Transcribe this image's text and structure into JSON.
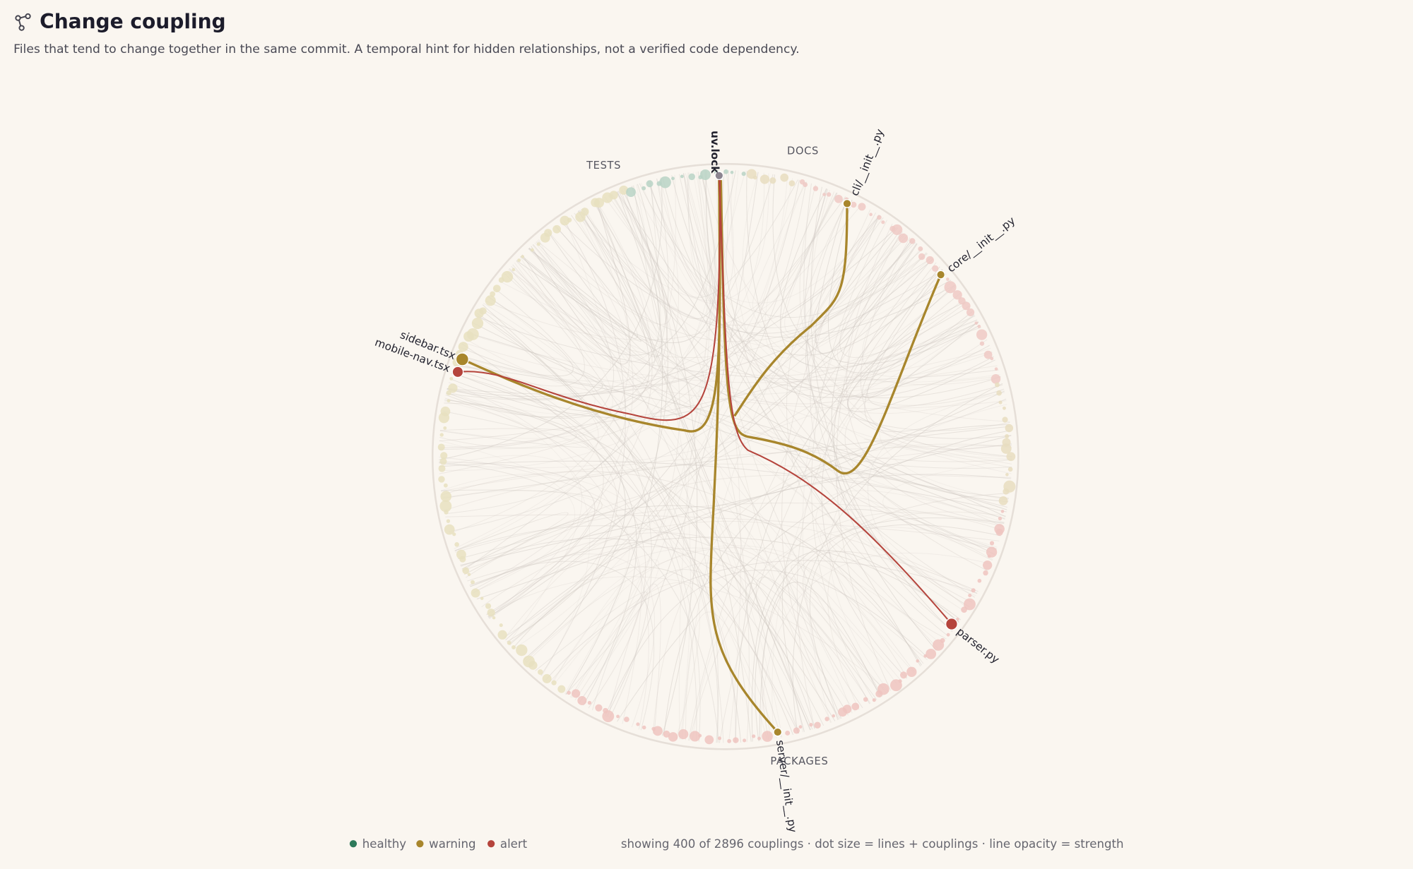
{
  "header": {
    "title": "Change coupling",
    "subtitle": "Files that tend to change together in the same commit. A temporal hint for hidden relationships, not a verified code dependency."
  },
  "groups": [
    "TESTS",
    "DOCS",
    "PACKAGES"
  ],
  "nodes": [
    {
      "label": "uv.lock"
    },
    {
      "label": "cli/__init__.py"
    },
    {
      "label": "core/__init__.py"
    },
    {
      "label": "sidebar.tsx"
    },
    {
      "label": "mobile-nav.tsx"
    },
    {
      "label": "parser.py"
    },
    {
      "label": "server/__init__.py"
    }
  ],
  "legend": [
    "healthy",
    "warning",
    "alert"
  ],
  "footer": "showing 400 of 2896 couplings · dot size = lines + couplings · line opacity = strength"
}
